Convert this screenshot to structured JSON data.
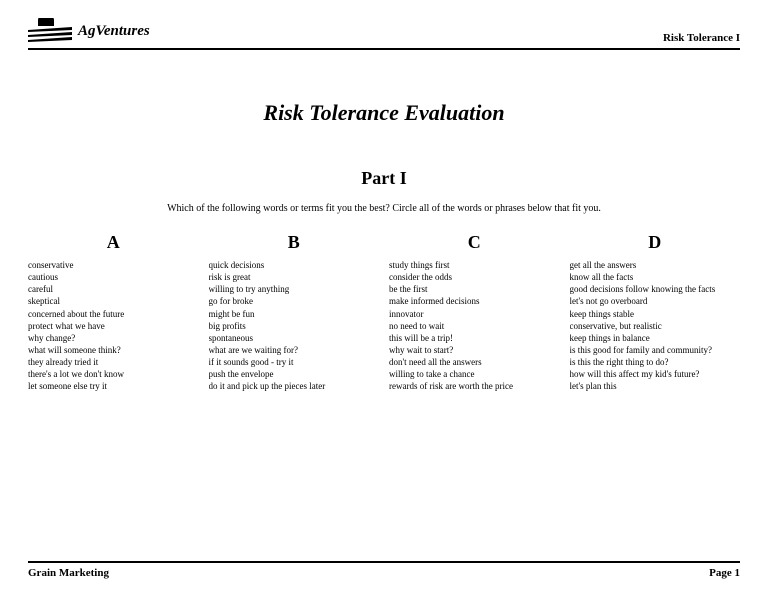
{
  "header": {
    "brand": "AgVentures",
    "right": "Risk Tolerance I"
  },
  "title": "Risk Tolerance Evaluation",
  "part": "Part I",
  "instructions": "Which of the following words or terms fit you the best?  Circle all of the words or phrases below that fit you.",
  "columns": [
    {
      "label": "A",
      "items": [
        "conservative",
        "cautious",
        "careful",
        "skeptical",
        "concerned about the future",
        "protect what we have",
        "why change?",
        "what will someone think?",
        "they already tried it",
        "there's a lot we don't know",
        "let someone else try it"
      ]
    },
    {
      "label": "B",
      "items": [
        "quick decisions",
        "risk is great",
        "willing to try anything",
        "go for broke",
        "might be fun",
        "big profits",
        "spontaneous",
        "what are we waiting for?",
        "if it sounds good - try it",
        "push the envelope",
        "do it and pick up the pieces later"
      ]
    },
    {
      "label": "C",
      "items": [
        "study things first",
        "consider the odds",
        "be the first",
        "make informed decisions",
        "innovator",
        "no need to wait",
        "this will be a trip!",
        "why wait to start?",
        "don't need all the answers",
        "willing to take a chance",
        "rewards of risk are worth the price"
      ]
    },
    {
      "label": "D",
      "items": [
        "get all the answers",
        "know all the facts",
        "good decisions follow knowing the facts",
        "let's not go overboard",
        "keep things stable",
        "conservative, but realistic",
        "keep things in balance",
        "is this good for family and community?",
        "is this the right thing to do?",
        "how will this affect my kid's future?",
        "let's plan this"
      ]
    }
  ],
  "footer": {
    "left": "Grain Marketing",
    "right": "Page 1"
  }
}
